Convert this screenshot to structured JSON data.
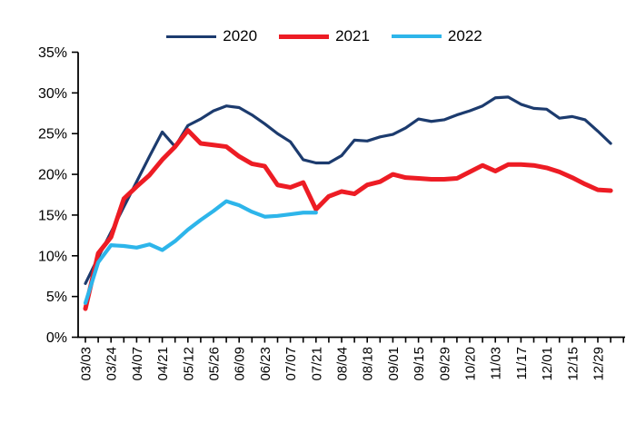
{
  "figure": {
    "background": "#FFFFFF",
    "axis_color": "#000000",
    "text_color": "#000000"
  },
  "chart_data": {
    "type": "line",
    "title": "",
    "xlabel": "",
    "ylabel": "",
    "grid": false,
    "legend_position": "top-center",
    "ylim": [
      0,
      35
    ],
    "ytick_step": 5,
    "ytick_labels": [
      "0%",
      "5%",
      "10%",
      "15%",
      "20%",
      "25%",
      "30%",
      "35%"
    ],
    "x_tick_count": 43,
    "x_labels": [
      {
        "index": 0,
        "label": "03/03"
      },
      {
        "index": 2,
        "label": "03/24"
      },
      {
        "index": 4,
        "label": "04/07"
      },
      {
        "index": 6,
        "label": "04/21"
      },
      {
        "index": 8,
        "label": "05/12"
      },
      {
        "index": 10,
        "label": "05/26"
      },
      {
        "index": 12,
        "label": "06/09"
      },
      {
        "index": 14,
        "label": "06/23"
      },
      {
        "index": 16,
        "label": "07/07"
      },
      {
        "index": 18,
        "label": "07/21"
      },
      {
        "index": 20,
        "label": "08/04"
      },
      {
        "index": 22,
        "label": "08/18"
      },
      {
        "index": 24,
        "label": "09/01"
      },
      {
        "index": 26,
        "label": "09/15"
      },
      {
        "index": 28,
        "label": "09/29"
      },
      {
        "index": 30,
        "label": "10/20"
      },
      {
        "index": 32,
        "label": "11/03"
      },
      {
        "index": 34,
        "label": "11/17"
      },
      {
        "index": 36,
        "label": "12/01"
      },
      {
        "index": 38,
        "label": "12/15"
      },
      {
        "index": 40,
        "label": "12/29"
      }
    ],
    "series": [
      {
        "name": "2020",
        "color": "#1C3B6E",
        "stroke_width": 3.2,
        "values": [
          6.6,
          9.8,
          12.9,
          16.0,
          19.1,
          22.2,
          25.2,
          23.4,
          26.0,
          26.8,
          27.8,
          28.4,
          28.2,
          27.3,
          26.2,
          25.0,
          24.0,
          21.8,
          21.4,
          21.4,
          22.3,
          24.2,
          24.1,
          24.6,
          24.9,
          25.7,
          26.8,
          26.5,
          26.7,
          27.3,
          27.8,
          28.4,
          29.4,
          29.5,
          28.6,
          28.1,
          28.0,
          26.9,
          27.1,
          26.7,
          25.3,
          23.8
        ]
      },
      {
        "name": "2021",
        "color": "#ED1C24",
        "stroke_width": 5,
        "values": [
          3.5,
          10.3,
          12.3,
          17.0,
          18.5,
          19.9,
          21.8,
          23.4,
          25.4,
          23.8,
          23.6,
          23.4,
          22.2,
          21.3,
          21.0,
          18.7,
          18.4,
          19.0,
          15.7,
          17.3,
          17.9,
          17.6,
          18.7,
          19.1,
          20.0,
          19.6,
          19.5,
          19.4,
          19.4,
          19.5,
          20.3,
          21.1,
          20.4,
          21.2,
          21.2,
          21.1,
          20.8,
          20.3,
          19.6,
          18.8,
          18.1,
          18.0
        ]
      },
      {
        "name": "2022",
        "color": "#2DB5EA",
        "stroke_width": 4.2,
        "values": [
          4.2,
          9.2,
          11.3,
          11.2,
          11.0,
          11.4,
          10.7,
          11.8,
          13.2,
          14.4,
          15.5,
          16.7,
          16.2,
          15.4,
          14.8,
          14.9,
          15.1,
          15.3,
          15.3
        ]
      }
    ]
  }
}
